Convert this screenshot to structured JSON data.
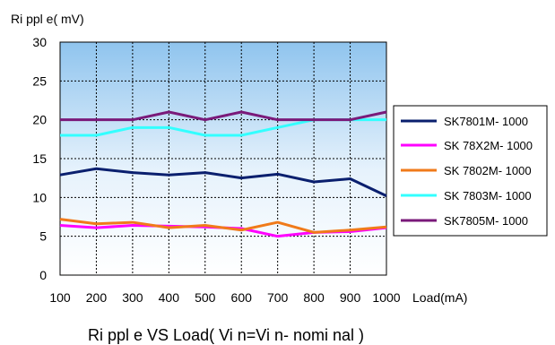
{
  "chart_data": {
    "type": "line",
    "title": "",
    "caption": "Ri ppl e  VS  Load( Vi n=Vi n- nomi nal )",
    "xlabel": "Load(mA)",
    "ylabel": "Ri ppl e( mV)",
    "x": [
      100,
      200,
      300,
      400,
      500,
      600,
      700,
      800,
      900,
      1000
    ],
    "xlim": [
      100,
      1000
    ],
    "ylim": [
      0,
      30
    ],
    "yticks": [
      0,
      5,
      10,
      15,
      20,
      25,
      30
    ],
    "grid": true,
    "legend_position": "right",
    "series": [
      {
        "name": "SK7801M- 1000",
        "color": "#0a1f6e",
        "values": [
          12.9,
          13.7,
          13.2,
          12.9,
          13.2,
          12.5,
          13.0,
          12.0,
          12.4,
          10.2
        ]
      },
      {
        "name": "SK 78X2M- 1000",
        "color": "#ff00ff",
        "values": [
          6.4,
          6.1,
          6.4,
          6.3,
          6.2,
          6.0,
          5.0,
          5.5,
          5.6,
          6.1
        ]
      },
      {
        "name": "SK 7802M- 1000",
        "color": "#f07a1a",
        "values": [
          7.2,
          6.6,
          6.8,
          6.1,
          6.4,
          5.8,
          6.8,
          5.5,
          5.8,
          6.2
        ]
      },
      {
        "name": "SK 7803M- 1000",
        "color": "#33ffff",
        "values": [
          18.0,
          18.0,
          19.0,
          19.0,
          18.0,
          18.0,
          19.0,
          20.0,
          20.0,
          20.0
        ]
      },
      {
        "name": "SK7805M- 1000",
        "color": "#7a1a7a",
        "values": [
          20.0,
          20.0,
          20.0,
          21.0,
          20.0,
          21.0,
          20.0,
          20.0,
          20.0,
          21.0
        ]
      }
    ]
  }
}
